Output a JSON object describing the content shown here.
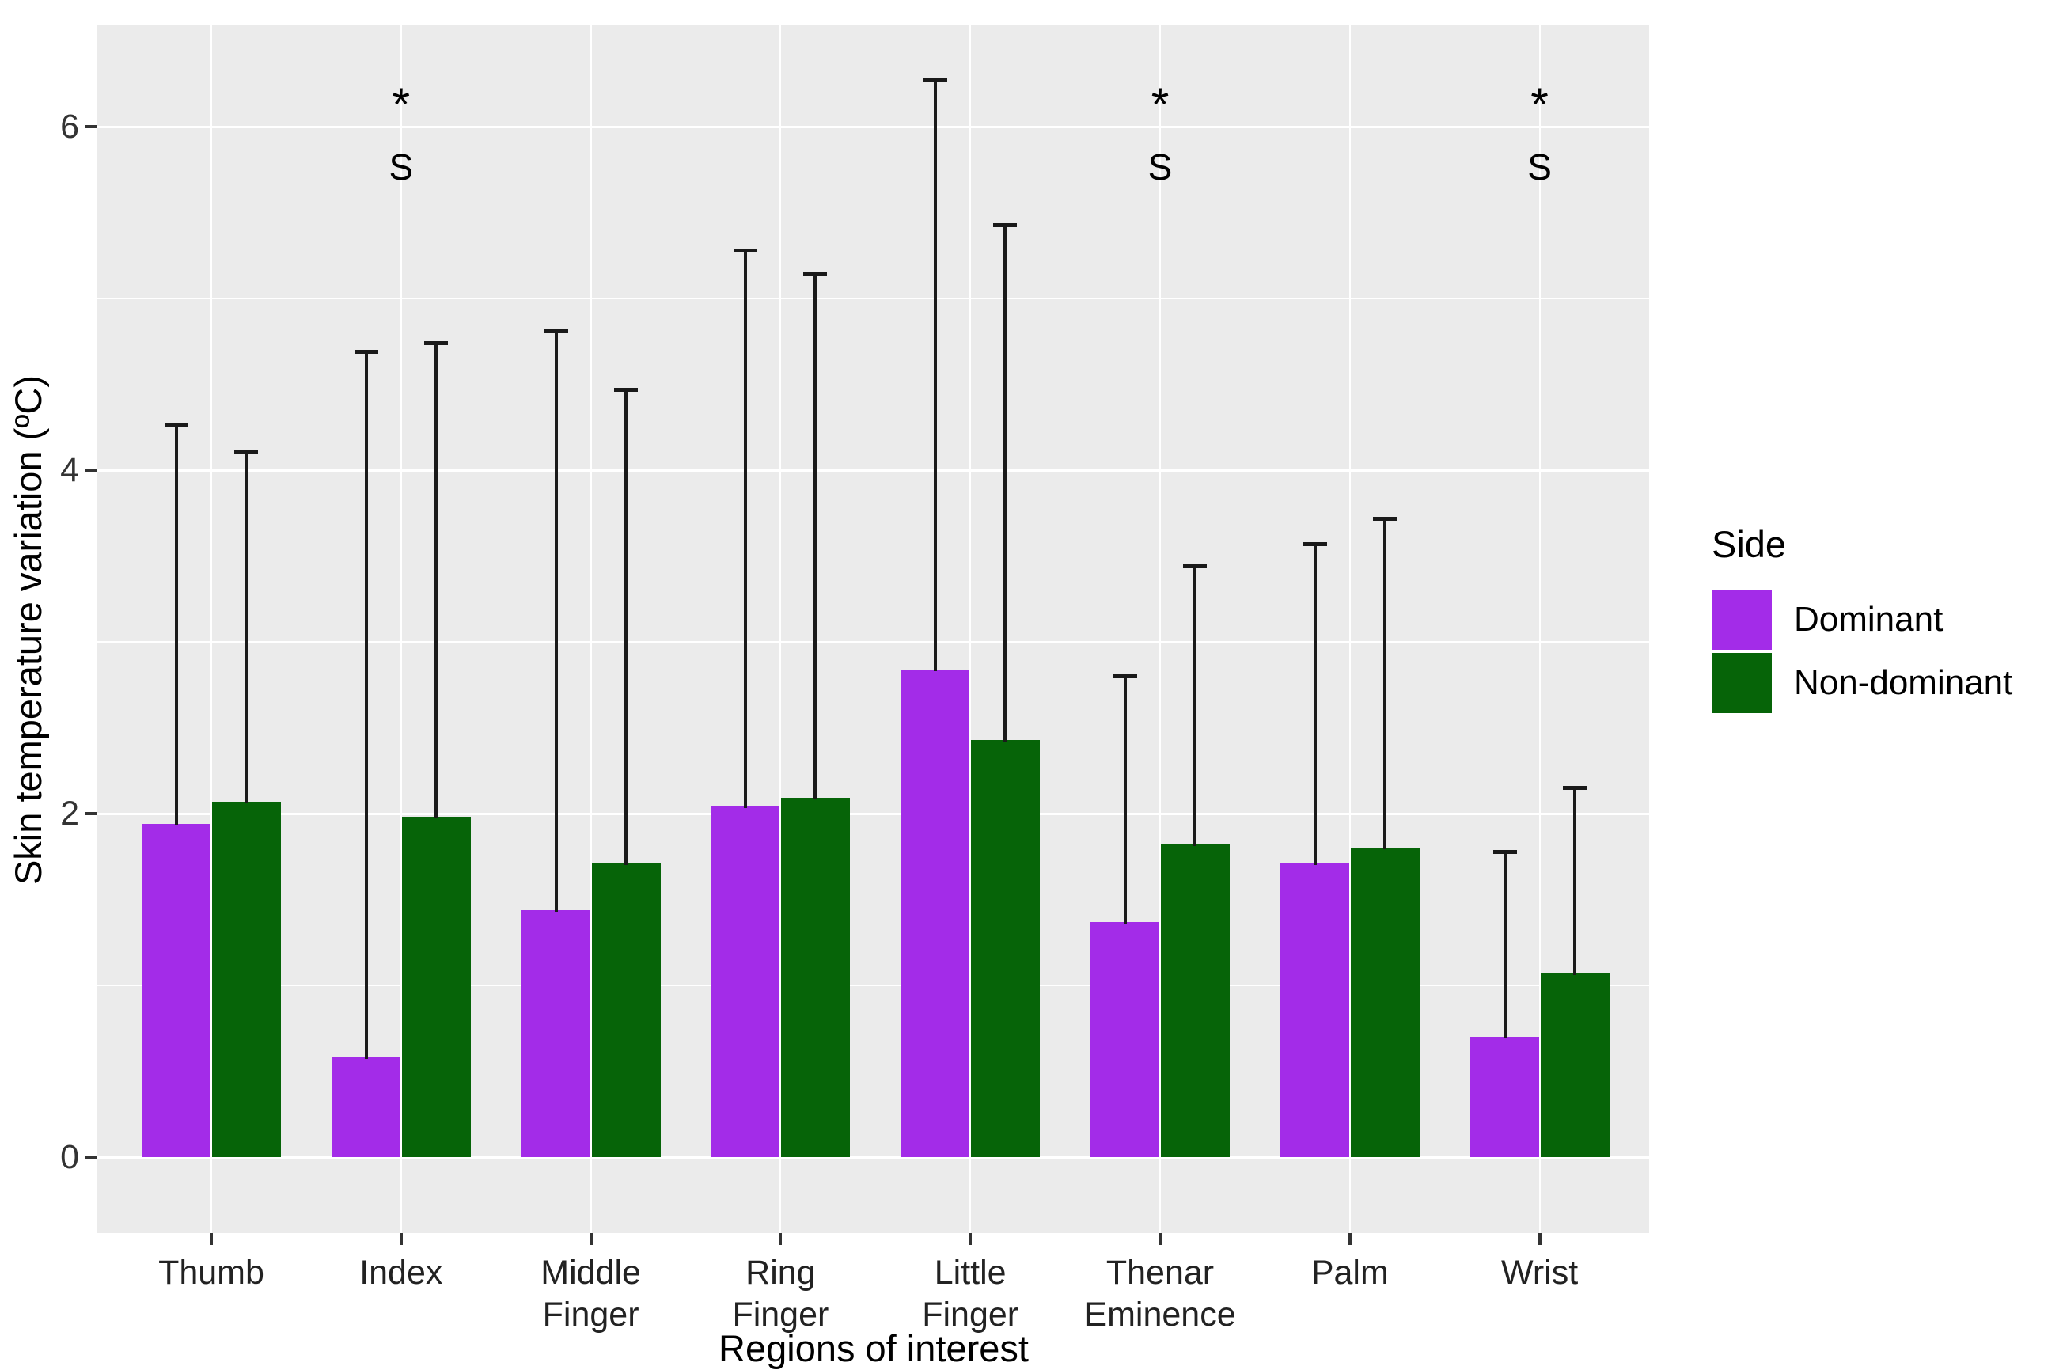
{
  "figure": {
    "y_axis_title": "Skin temperature variation (ºC)",
    "x_axis_title": "Regions of interest"
  },
  "legend": {
    "title": "Side",
    "items": [
      {
        "label": "Dominant",
        "color": "#A32CE8"
      },
      {
        "label": "Non-dominant",
        "color": "#066408"
      }
    ]
  },
  "chart_data": {
    "type": "bar",
    "title": "",
    "xlabel": "Regions of interest",
    "ylabel": "Skin temperature variation (ºC)",
    "categories": [
      "Thumb",
      "Index",
      "Middle Finger",
      "Ring Finger",
      "Little Finger",
      "Thenar Eminence",
      "Palm",
      "Wrist"
    ],
    "category_label_lines": [
      [
        "Thumb"
      ],
      [
        "Index"
      ],
      [
        "Middle",
        "Finger"
      ],
      [
        "Ring",
        "Finger"
      ],
      [
        "Little",
        "Finger"
      ],
      [
        "Thenar",
        "Eminence"
      ],
      [
        "Palm"
      ],
      [
        "Wrist"
      ]
    ],
    "series": [
      {
        "name": "Dominant",
        "color": "#A32CE8",
        "values": [
          1.94,
          0.58,
          1.44,
          2.04,
          2.84,
          1.37,
          1.71,
          0.7
        ],
        "error_upper": [
          4.27,
          4.7,
          4.82,
          5.29,
          6.28,
          2.81,
          3.58,
          1.79
        ]
      },
      {
        "name": "Non-dominant",
        "color": "#066408",
        "values": [
          2.07,
          1.98,
          1.71,
          2.09,
          2.43,
          1.82,
          1.8,
          1.07
        ],
        "error_upper": [
          4.12,
          4.75,
          4.48,
          5.15,
          5.44,
          3.45,
          3.73,
          2.16
        ]
      }
    ],
    "y_ticks": [
      0,
      2,
      4,
      6
    ],
    "y_minor_ticks": [
      1,
      3,
      5
    ],
    "ylim": [
      -0.45,
      6.6
    ],
    "grid": "white major+minor horizontal lines and vertical lines at category centers on grey panel",
    "legend_position": "right",
    "panel_background": "#EBEBEB",
    "gridline_color": "#FFFFFF",
    "error_bar_color": "#1a1a1a",
    "significance_annotations": {
      "symbols": [
        "*",
        "S"
      ],
      "categories": [
        "Index",
        "Thenar Eminence",
        "Wrist"
      ]
    }
  }
}
